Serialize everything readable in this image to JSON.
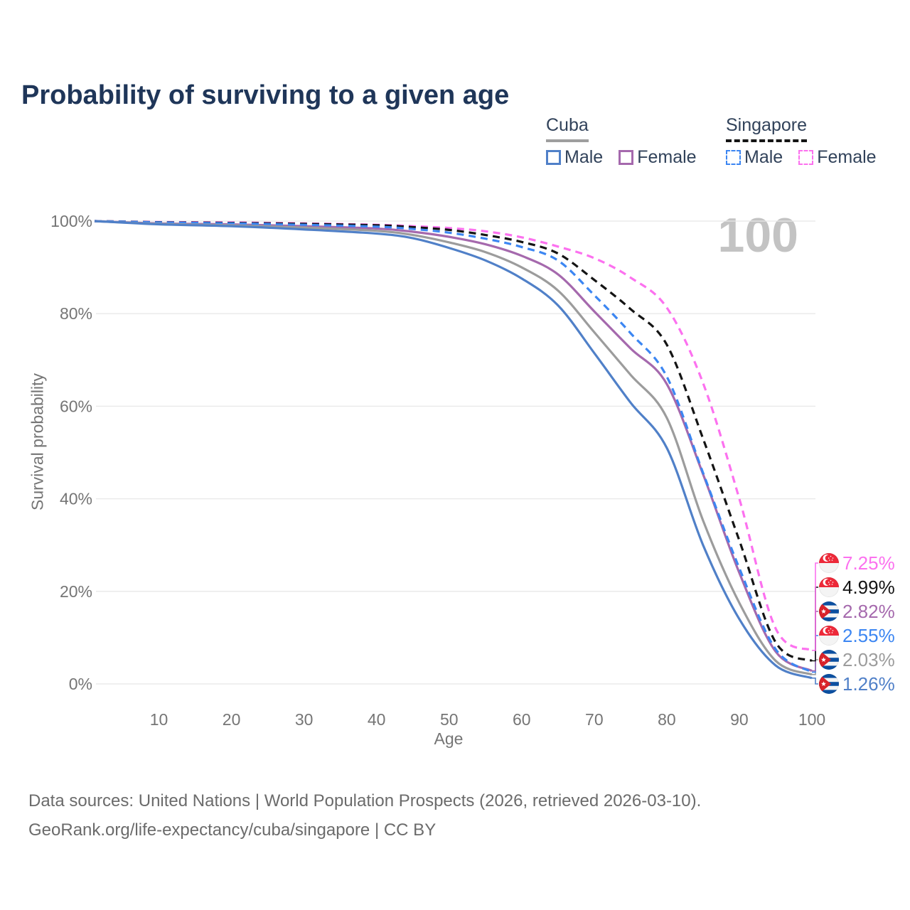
{
  "title": "Probability of surviving to a given age",
  "watermark": "100",
  "legend": {
    "groups": [
      {
        "name": "Cuba",
        "underline_style": "solid",
        "underline_color": "#9e9e9e",
        "items": [
          {
            "label": "Male",
            "color": "#5080c8",
            "dashed": false
          },
          {
            "label": "Female",
            "color": "#a569ad",
            "dashed": false
          }
        ]
      },
      {
        "name": "Singapore",
        "underline_style": "dashed",
        "underline_color": "#141414",
        "items": [
          {
            "label": "Male",
            "color": "#3c86f2",
            "dashed": true
          },
          {
            "label": "Female",
            "color": "#fc71ef",
            "dashed": true
          }
        ]
      }
    ]
  },
  "axes": {
    "x_label": "Age",
    "y_label": "Survival probability"
  },
  "chart_data": {
    "type": "line",
    "title": "Probability of surviving to a given age",
    "xlabel": "Age",
    "ylabel": "Survival probability",
    "xlim": [
      0,
      100
    ],
    "ylim": [
      0,
      100
    ],
    "grid": true,
    "legend_position": "top-right",
    "x_tick_values": [
      10,
      20,
      30,
      40,
      50,
      60,
      70,
      80,
      90,
      100
    ],
    "x_tick_labels": [
      "10",
      "20",
      "30",
      "40",
      "50",
      "60",
      "70",
      "80",
      "90",
      "100"
    ],
    "y_tick_values": [
      0,
      20,
      40,
      60,
      80,
      100
    ],
    "y_tick_labels": [
      "0%",
      "20%",
      "40%",
      "60%",
      "80%",
      "100%"
    ],
    "x": [
      0,
      10,
      20,
      30,
      40,
      45,
      50,
      55,
      60,
      65,
      70,
      75,
      80,
      85,
      90,
      95,
      100
    ],
    "series": [
      {
        "name": "Singapore Female",
        "country": "Singapore",
        "sex": "Female",
        "color": "#fc71ef",
        "dashed": true,
        "flag": "sg",
        "end_label": "7.25%",
        "values": [
          100,
          99.8,
          99.7,
          99.5,
          99.2,
          98.9,
          98.5,
          97.8,
          96.5,
          94.5,
          92.0,
          87.8,
          81.3,
          65.0,
          40.0,
          12.0,
          7.25
        ]
      },
      {
        "name": "Singapore Both sexes",
        "country": "Singapore",
        "sex": "Both",
        "color": "#141414",
        "dashed": true,
        "flag": "sg",
        "end_label": "4.99%",
        "values": [
          100,
          99.75,
          99.6,
          99.4,
          99.1,
          98.7,
          98.1,
          97.0,
          95.5,
          93.0,
          87.3,
          81.0,
          73.3,
          53.0,
          31.0,
          9.0,
          4.99
        ]
      },
      {
        "name": "Cuba Female",
        "country": "Cuba",
        "sex": "Female",
        "color": "#a569ad",
        "dashed": false,
        "flag": "cu",
        "end_label": "2.82%",
        "values": [
          100,
          99.5,
          99.3,
          98.9,
          98.4,
          97.7,
          96.6,
          95.0,
          92.5,
          88.5,
          80.5,
          72.5,
          64.8,
          45.3,
          24.0,
          7.0,
          2.82
        ]
      },
      {
        "name": "Singapore Male",
        "country": "Singapore",
        "sex": "Male",
        "color": "#3c86f2",
        "dashed": true,
        "flag": "sg",
        "end_label": "2.55%",
        "values": [
          100,
          99.7,
          99.5,
          99.2,
          98.8,
          98.3,
          97.5,
          96.2,
          94.4,
          91.5,
          84.0,
          75.8,
          66.4,
          45.6,
          25.0,
          7.5,
          2.55
        ]
      },
      {
        "name": "Cuba Both sexes",
        "country": "Cuba",
        "sex": "Both",
        "color": "#9c9c9c",
        "dashed": false,
        "flag": "cu",
        "end_label": "2.03%",
        "values": [
          100,
          99.4,
          99.1,
          98.6,
          97.9,
          97.0,
          95.4,
          93.3,
          90.0,
          85.0,
          76.0,
          66.8,
          57.5,
          35.3,
          17.5,
          5.0,
          2.03
        ]
      },
      {
        "name": "Cuba Male",
        "country": "Cuba",
        "sex": "Male",
        "color": "#5080c8",
        "dashed": false,
        "flag": "cu",
        "end_label": "1.26%",
        "values": [
          100,
          99.3,
          98.9,
          98.2,
          97.3,
          96.3,
          94.2,
          91.5,
          87.6,
          81.8,
          71.5,
          60.8,
          51.0,
          30.0,
          14.0,
          4.0,
          1.26
        ]
      }
    ],
    "flag_colors": {
      "sg_red": "#ed2939",
      "sg_white": "#f4f4f4",
      "cu_blue": "#0b4fa0",
      "cu_white": "#f4f4f4",
      "cu_red": "#d8222a"
    },
    "grid_color": "#e8e8e8",
    "tick_color": "#757575"
  },
  "footer": {
    "line1": "Data sources: United Nations | World Population Prospects (2026, retrieved 2026-03-10).",
    "line2": "GeoRank.org/life-expectancy/cuba/singapore | CC BY"
  }
}
